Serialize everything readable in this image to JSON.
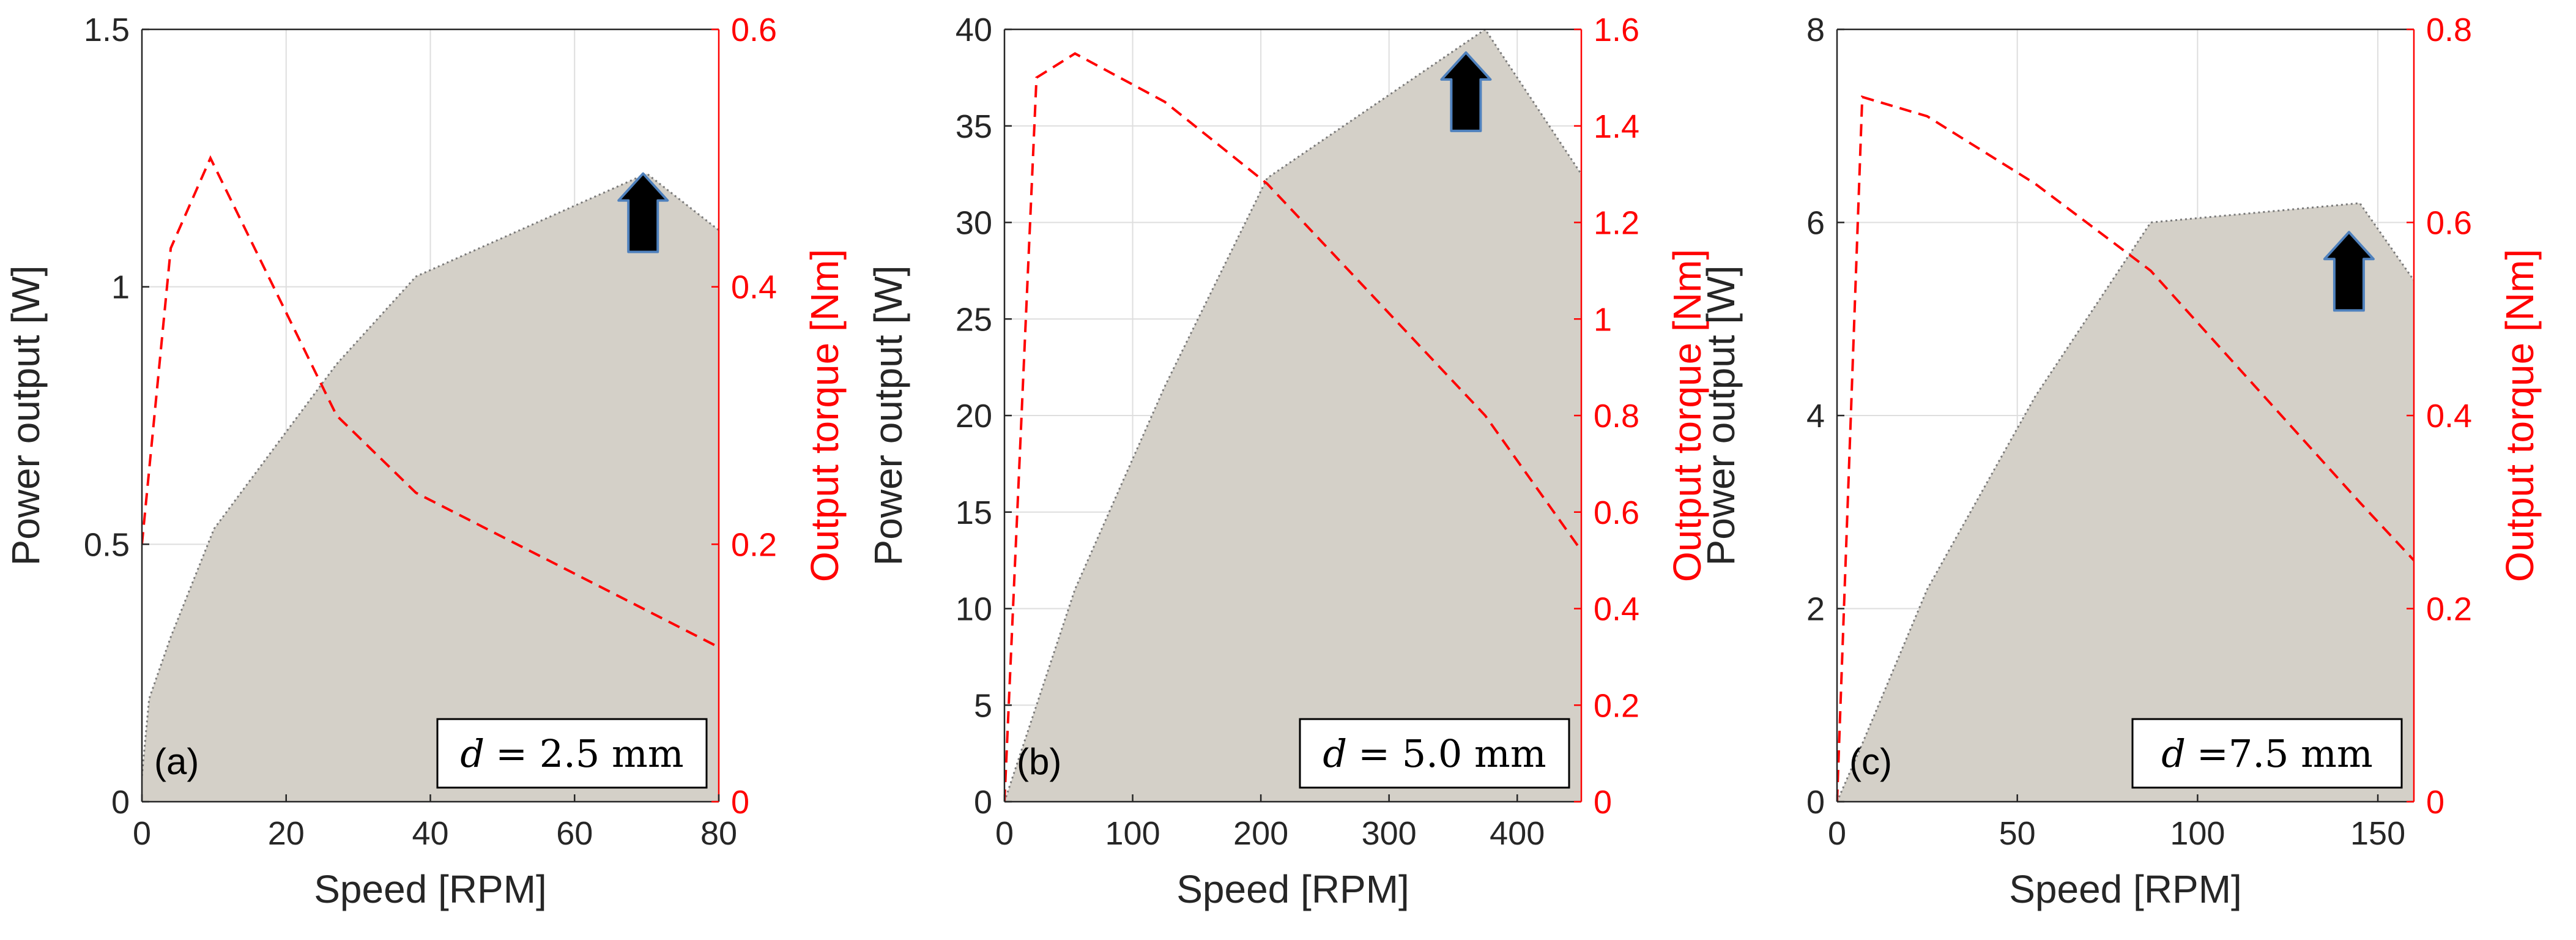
{
  "chart_data": [
    {
      "type": "area",
      "panel_label": "(a)",
      "annotation": {
        "symbol": "d",
        "text": "= 2.5 mm"
      },
      "xlabel": "Speed [RPM]",
      "ylabel": "Power output [W]",
      "y2label": "Output torque [Nm]",
      "xlim": [
        0,
        80
      ],
      "ylim": [
        0,
        1.5
      ],
      "y2lim": [
        0,
        0.6
      ],
      "xticks": [
        0,
        20,
        40,
        60,
        80
      ],
      "xtick_labels": [
        "0",
        "20",
        "40",
        "60",
        "80"
      ],
      "yticks": [
        0,
        0.5,
        1,
        1.5
      ],
      "ytick_labels": [
        "0",
        "0.5",
        "1",
        "1.5"
      ],
      "y2ticks": [
        0,
        0.2,
        0.4,
        0.6
      ],
      "y2tick_labels": [
        "0",
        "0.2",
        "0.4",
        "0.6"
      ],
      "grid": true,
      "series": [
        {
          "name": "Power output",
          "style": "gray filled area with dotted outline",
          "color": "#d4d0c8",
          "x": [
            0,
            1,
            4,
            10,
            27,
            38,
            70,
            80
          ],
          "y": [
            0.05,
            0.2,
            0.32,
            0.53,
            0.85,
            1.02,
            1.22,
            1.11
          ]
        },
        {
          "name": "Output torque",
          "style": "red dashed line",
          "color": "#ff0000",
          "x": [
            0,
            4,
            9.5,
            27,
            38,
            80
          ],
          "y": [
            0.2,
            0.43,
            0.5,
            0.3,
            0.24,
            0.12
          ]
        }
      ],
      "arrow": {
        "x": 69.5,
        "y": 1.22
      }
    },
    {
      "type": "area",
      "panel_label": "(b)",
      "annotation": {
        "symbol": "d",
        "text": "= 5.0 mm"
      },
      "xlabel": "Speed [RPM]",
      "ylabel": "Power output [W]",
      "y2label": "Output torque [Nm]",
      "xlim": [
        0,
        450
      ],
      "ylim": [
        0,
        40
      ],
      "y2lim": [
        0,
        1.6
      ],
      "xticks": [
        0,
        100,
        200,
        300,
        400
      ],
      "xtick_labels": [
        "0",
        "100",
        "200",
        "300",
        "400"
      ],
      "yticks": [
        0,
        5,
        10,
        15,
        20,
        25,
        30,
        35,
        40
      ],
      "ytick_labels": [
        "0",
        "5",
        "10",
        "15",
        "20",
        "25",
        "30",
        "35",
        "40"
      ],
      "y2ticks": [
        0,
        0.2,
        0.4,
        0.6,
        0.8,
        1,
        1.2,
        1.4,
        1.6
      ],
      "y2tick_labels": [
        "0",
        "0.2",
        "0.4",
        "0.6",
        "0.8",
        "1",
        "1.2",
        "1.4",
        "1.6"
      ],
      "grid": true,
      "series": [
        {
          "name": "Power output",
          "style": "gray filled area with dotted outline",
          "color": "#d4d0c8",
          "x": [
            0,
            25,
            55,
            125,
            205,
            375,
            450
          ],
          "y": [
            0,
            5,
            11,
            21.5,
            32.3,
            40,
            32.5
          ]
        },
        {
          "name": "Output torque",
          "style": "red dashed line",
          "color": "#ff0000",
          "x": [
            0,
            25,
            55,
            125,
            205,
            375,
            450
          ],
          "y": [
            0,
            1.5,
            1.55,
            1.45,
            1.28,
            0.8,
            0.52
          ]
        }
      ],
      "arrow": {
        "x": 360,
        "y": 38.8
      }
    },
    {
      "type": "area",
      "panel_label": "(c)",
      "annotation": {
        "symbol": "d",
        "text": "=7.5 mm"
      },
      "xlabel": "Speed [RPM]",
      "ylabel": "Power output [W]",
      "y2label": "Output torque [Nm]",
      "xlim": [
        0,
        160
      ],
      "ylim": [
        0,
        8
      ],
      "y2lim": [
        0,
        0.8
      ],
      "xticks": [
        0,
        50,
        100,
        150
      ],
      "xtick_labels": [
        "0",
        "50",
        "100",
        "150"
      ],
      "yticks": [
        0,
        2,
        4,
        6,
        8
      ],
      "ytick_labels": [
        "0",
        "2",
        "4",
        "6",
        "8"
      ],
      "y2ticks": [
        0,
        0.2,
        0.4,
        0.6,
        0.8
      ],
      "y2tick_labels": [
        "0",
        "0.2",
        "0.4",
        "0.6",
        "0.8"
      ],
      "grid": true,
      "series": [
        {
          "name": "Power output",
          "style": "gray filled area with dotted outline",
          "color": "#d4d0c8",
          "x": [
            0,
            7,
            25,
            55,
            87,
            145,
            160
          ],
          "y": [
            0,
            0.6,
            2.2,
            4.2,
            6.0,
            6.2,
            5.4
          ]
        },
        {
          "name": "Output torque",
          "style": "red dashed line",
          "color": "#ff0000",
          "x": [
            0,
            7,
            25,
            55,
            87,
            145,
            160
          ],
          "y": [
            0,
            0.73,
            0.71,
            0.64,
            0.55,
            0.31,
            0.25
          ]
        }
      ],
      "arrow": {
        "x": 142,
        "y": 5.9
      }
    }
  ]
}
